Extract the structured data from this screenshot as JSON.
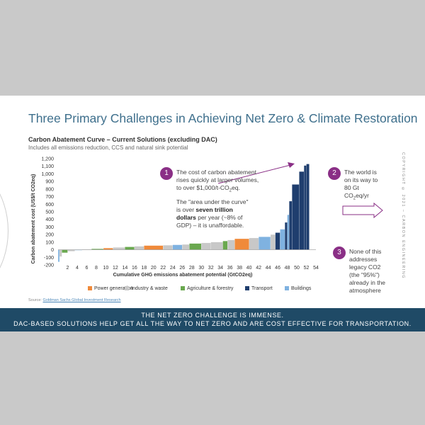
{
  "title": "Three Primary Challenges in Achieving Net Zero & Climate Restoration",
  "chart_title": "Carbon Abatement Curve – Current Solutions (excluding DAC)",
  "chart_subtitle": "Includes all emissions reduction, CCS and natural sink potential",
  "callouts": {
    "c1_number": "1",
    "c1_text_a": "The cost of carbon abatement rises quickly at larger volumes, to over $1,000/t-CO",
    "c1_text_sub": "2",
    "c1_text_b": "eq.",
    "c1_para2_a": "The \"area under the curve\" is over ",
    "c1_para2_bold": "seven trillion dollars",
    "c1_para2_b": " per year (~8% of GDP) – it is unaffordable.",
    "c2_number": "2",
    "c2_text_a": "The world is on its way to 80 Gt CO",
    "c2_text_sub": "2",
    "c2_text_b": "eq/yr",
    "c3_number": "3",
    "c3_text": "None of this addresses legacy CO2 (the \"95%\") already in the atmosphere"
  },
  "source_label": "Source: ",
  "source_link": "Goldman Sachs Global Investment Research",
  "copyright": "COPYRIGHT © 2021 – CARBON ENGINEERING",
  "banner": {
    "line1": "THE NET ZERO CHALLENGE IS IMMENSE.",
    "line2": "DAC-BASED SOLUTIONS HELP GET ALL THE WAY TO NET ZERO AND ARE COST EFFECTIVE FOR TRANSPORTATION."
  },
  "colors": {
    "title": "#3e6f8c",
    "accent": "#8a2f86",
    "banner": "#1f4a66",
    "power": "#f08a3a",
    "industry": "#c8c8c8",
    "agriculture": "#6aa84f",
    "transport": "#1f3e6e",
    "buildings": "#7fb2e0"
  },
  "chart_data": {
    "type": "bar",
    "xlabel": "Cumulative GHG emissions abatement potential (GtCO2eq)",
    "ylabel": "Carbon abatement cost (US$/t CO2eq)",
    "x_ticks": [
      "2",
      "4",
      "6",
      "8",
      "10",
      "12",
      "14",
      "16",
      "18",
      "20",
      "22",
      "24",
      "26",
      "28",
      "30",
      "32",
      "34",
      "36",
      "38",
      "40",
      "42",
      "44",
      "46",
      "48",
      "50",
      "52",
      "54"
    ],
    "y_ticks": [
      "1,200",
      "1,100",
      "1,000",
      "900",
      "800",
      "700",
      "600",
      "500",
      "400",
      "300",
      "200",
      "100",
      "0",
      "-100",
      "-200"
    ],
    "xlim": [
      0,
      54
    ],
    "ylim": [
      -200,
      1200
    ],
    "legend_position": "bottom",
    "series": [
      {
        "name": "Power generation",
        "color": "#f08a3a"
      },
      {
        "name": "Industry & waste",
        "color": "#c8c8c8"
      },
      {
        "name": "Agriculture & forestry",
        "color": "#6aa84f"
      },
      {
        "name": "Transport",
        "color": "#1f3e6e"
      },
      {
        "name": "Buildings",
        "color": "#7fb2e0"
      }
    ],
    "bars": [
      {
        "x0": 0,
        "x1": 0.3,
        "y": -160,
        "s": 4
      },
      {
        "x0": 0.3,
        "x1": 0.8,
        "y": -90,
        "s": 1
      },
      {
        "x0": 0.8,
        "x1": 2.0,
        "y": -40,
        "s": 2
      },
      {
        "x0": 2.0,
        "x1": 3.5,
        "y": -20,
        "s": 1
      },
      {
        "x0": 3.5,
        "x1": 5.0,
        "y": -5,
        "s": 4
      },
      {
        "x0": 5.0,
        "x1": 7.0,
        "y": 5,
        "s": 1
      },
      {
        "x0": 7.0,
        "x1": 9.5,
        "y": 12,
        "s": 2
      },
      {
        "x0": 9.5,
        "x1": 11.5,
        "y": 22,
        "s": 0
      },
      {
        "x0": 11.5,
        "x1": 14.0,
        "y": 30,
        "s": 1
      },
      {
        "x0": 14.0,
        "x1": 16.0,
        "y": 38,
        "s": 2
      },
      {
        "x0": 16.0,
        "x1": 18.0,
        "y": 45,
        "s": 1
      },
      {
        "x0": 18.0,
        "x1": 22.0,
        "y": 55,
        "s": 0
      },
      {
        "x0": 22.0,
        "x1": 24.0,
        "y": 60,
        "s": 1
      },
      {
        "x0": 24.0,
        "x1": 26.0,
        "y": 65,
        "s": 4
      },
      {
        "x0": 26.0,
        "x1": 27.5,
        "y": 70,
        "s": 1
      },
      {
        "x0": 27.5,
        "x1": 30.0,
        "y": 82,
        "s": 2
      },
      {
        "x0": 30.0,
        "x1": 32.0,
        "y": 90,
        "s": 1
      },
      {
        "x0": 32.0,
        "x1": 34.5,
        "y": 100,
        "s": 1
      },
      {
        "x0": 34.5,
        "x1": 35.5,
        "y": 115,
        "s": 2
      },
      {
        "x0": 35.5,
        "x1": 37.0,
        "y": 128,
        "s": 1
      },
      {
        "x0": 37.0,
        "x1": 40.0,
        "y": 145,
        "s": 0
      },
      {
        "x0": 40.0,
        "x1": 42.0,
        "y": 155,
        "s": 1
      },
      {
        "x0": 42.0,
        "x1": 44.5,
        "y": 170,
        "s": 4
      },
      {
        "x0": 44.5,
        "x1": 45.5,
        "y": 200,
        "s": 1
      },
      {
        "x0": 45.5,
        "x1": 46.5,
        "y": 225,
        "s": 3
      },
      {
        "x0": 46.5,
        "x1": 47.5,
        "y": 270,
        "s": 4
      },
      {
        "x0": 47.5,
        "x1": 48.0,
        "y": 360,
        "s": 3
      },
      {
        "x0": 48.0,
        "x1": 48.4,
        "y": 460,
        "s": 4
      },
      {
        "x0": 48.4,
        "x1": 49.0,
        "y": 640,
        "s": 3
      },
      {
        "x0": 49.0,
        "x1": 50.5,
        "y": 860,
        "s": 3
      },
      {
        "x0": 50.5,
        "x1": 51.5,
        "y": 1030,
        "s": 3
      },
      {
        "x0": 51.5,
        "x1": 52.0,
        "y": 1110,
        "s": 3
      },
      {
        "x0": 52.0,
        "x1": 52.6,
        "y": 1130,
        "s": 3
      }
    ]
  }
}
